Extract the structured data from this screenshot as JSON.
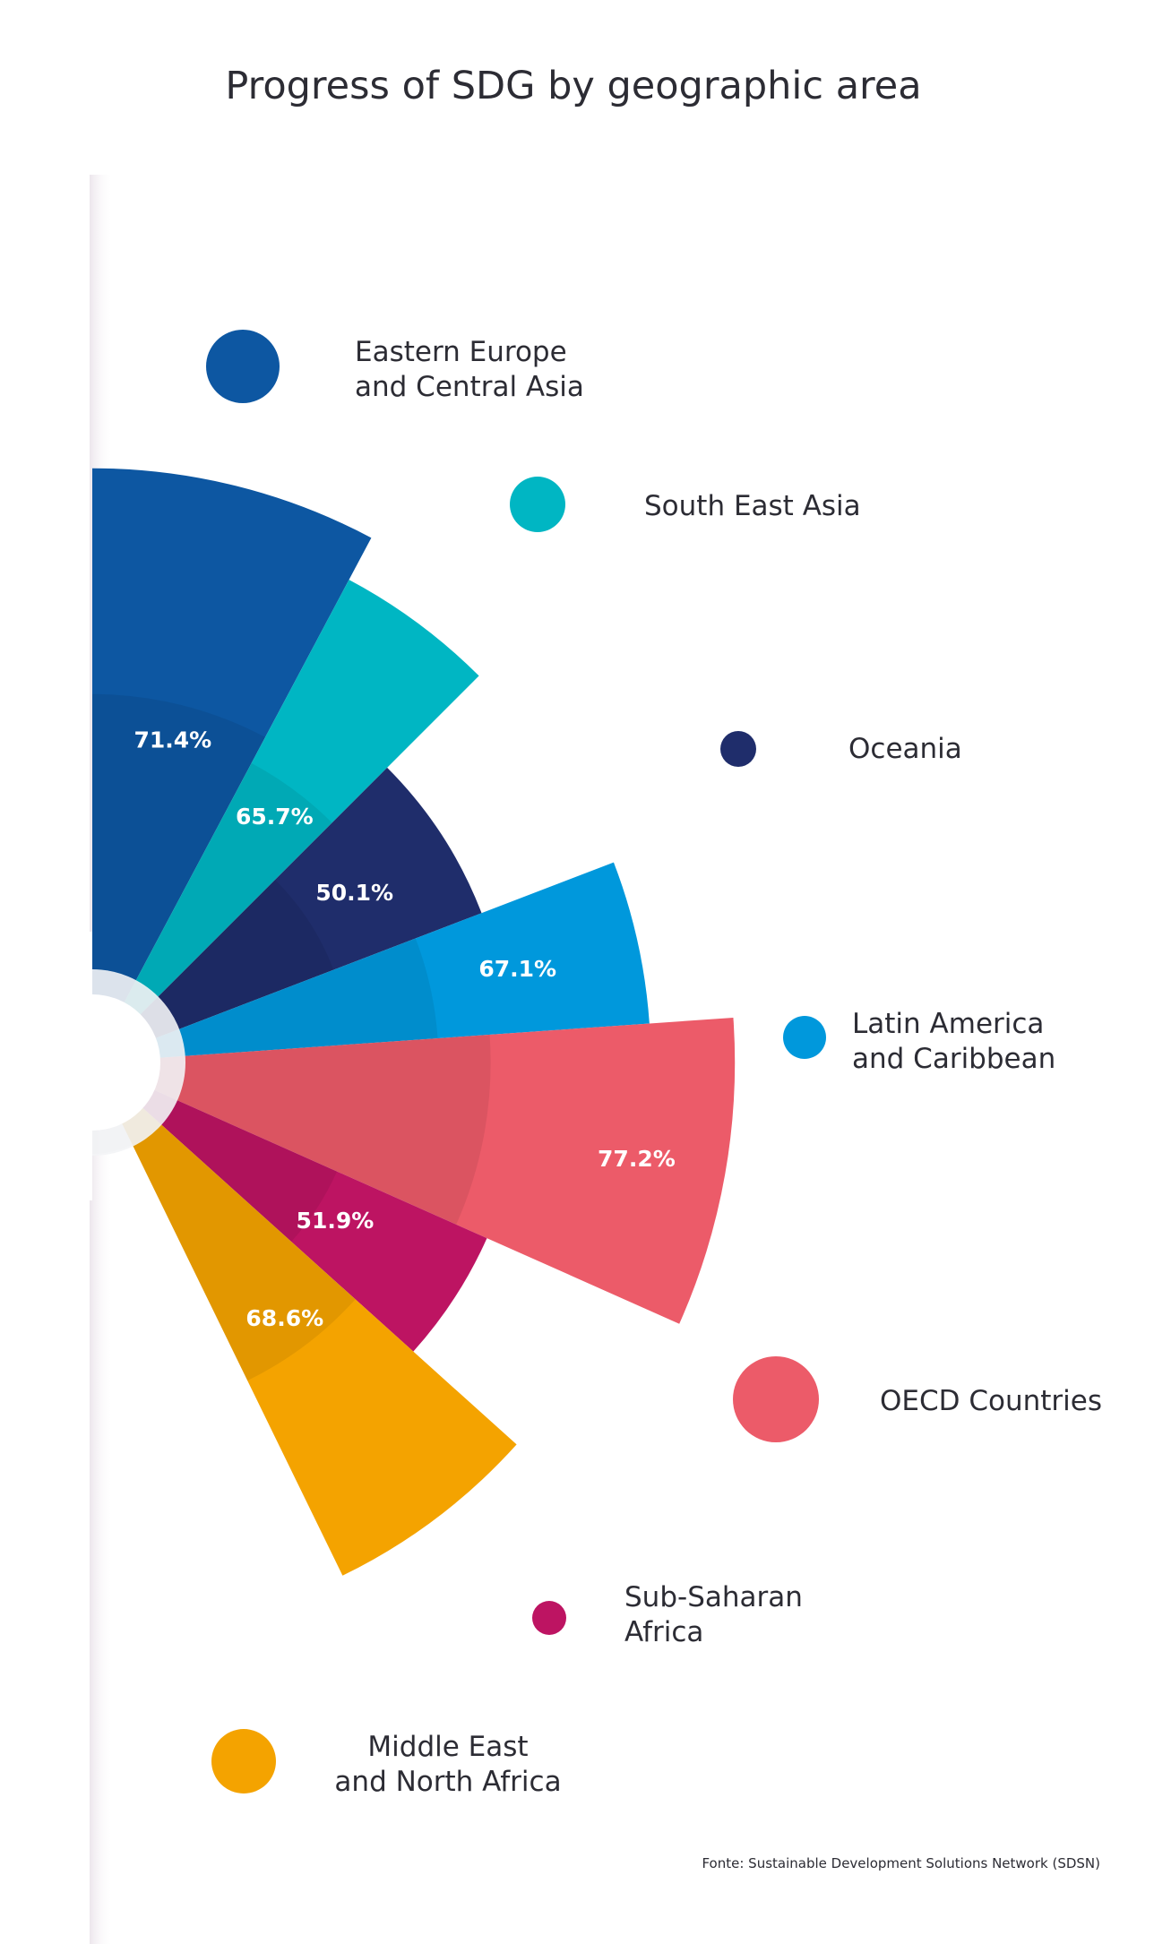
{
  "chart_data": {
    "type": "polar-bar",
    "title": "Progress of SDG by geographic area",
    "source": "Fonte: Sustainable Development Solutions Network (SDSN)",
    "categories": [
      "Eastern Europe and Central Asia",
      "South East Asia",
      "Oceania",
      "Latin America and Caribbean",
      "OECD Countries",
      "Sub-Saharan Africa",
      "Middle East and North Africa"
    ],
    "values": [
      71.4,
      65.7,
      50.1,
      67.1,
      77.2,
      51.9,
      68.6
    ],
    "value_labels": [
      "71.4%",
      "65.7%",
      "50.1%",
      "67.1%",
      "77.2%",
      "51.9%",
      "68.6%"
    ],
    "legend": [
      {
        "lines": [
          "Eastern Europe",
          "and Central Asia"
        ],
        "color": "#0d57a2"
      },
      {
        "lines": [
          "South East Asia"
        ],
        "color": "#00b6c3"
      },
      {
        "lines": [
          "Oceania"
        ],
        "color": "#1f2d6b"
      },
      {
        "lines": [
          "Latin America",
          "and Caribbean"
        ],
        "color": "#0098dc"
      },
      {
        "lines": [
          "OECD Countries"
        ],
        "color": "#ec5b69"
      },
      {
        "lines": [
          "Sub-Saharan",
          "Africa"
        ],
        "color": "#bd1462"
      },
      {
        "lines": [
          "Middle East",
          "and North Africa"
        ],
        "color": "#f4a300"
      }
    ],
    "colors": [
      "#0d57a2",
      "#00b6c3",
      "#1f2d6b",
      "#0098dc",
      "#ec5b69",
      "#bd1462",
      "#f4a300"
    ]
  }
}
